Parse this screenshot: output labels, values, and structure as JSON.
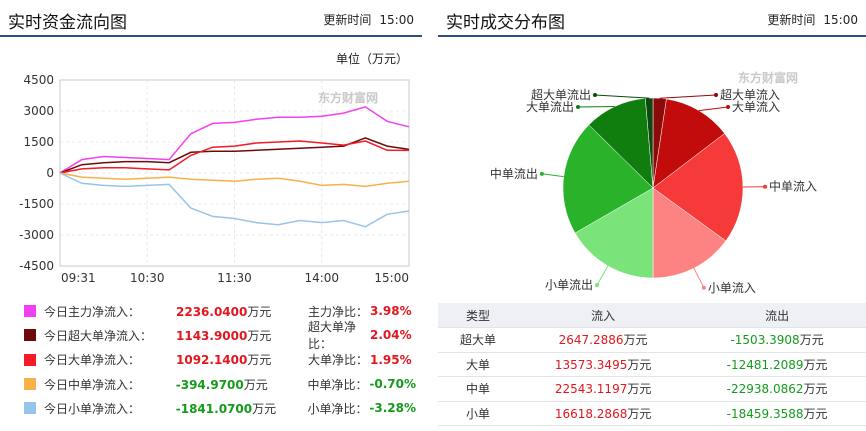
{
  "left": {
    "title": "实时资金流向图",
    "time_label": "更新时间",
    "time_value": "15:00",
    "unit_label": "单位（万元）",
    "legend": [
      {
        "name": "今日主力净流入：",
        "value": "2236.0400",
        "unit": "万元",
        "ratio_name": "主力净比：",
        "ratio": "3.98%",
        "color": "#f23ff2",
        "sign": "pos"
      },
      {
        "name": "今日超大单净流入：",
        "value": "1143.9000",
        "unit": "万元",
        "ratio_name": "超大单净比：",
        "ratio": "2.04%",
        "color": "#6e0a0a",
        "sign": "pos"
      },
      {
        "name": "今日大单净流入：",
        "value": "1092.1400",
        "unit": "万元",
        "ratio_name": "大单净比：",
        "ratio": "1.95%",
        "color": "#f21b26",
        "sign": "pos"
      },
      {
        "name": "今日中单净流入：",
        "value": "-394.9700",
        "unit": "万元",
        "ratio_name": "中单净比：",
        "ratio": "-0.70%",
        "color": "#f6b24a",
        "sign": "neg"
      },
      {
        "name": "今日小单净流入：",
        "value": "-1841.0700",
        "unit": "万元",
        "ratio_name": "小单净比：",
        "ratio": "-3.28%",
        "color": "#97c4ea",
        "sign": "neg"
      }
    ]
  },
  "right": {
    "title": "实时成交分布图",
    "time_label": "更新时间",
    "time_value": "15:00",
    "table": {
      "headers": [
        "类型",
        "流入",
        "流出"
      ],
      "unit": "万元",
      "rows": [
        {
          "type": "超大单",
          "in": "2647.2886",
          "out": "-1503.3908"
        },
        {
          "type": "大单",
          "in": "13573.3495",
          "out": "-12481.2089"
        },
        {
          "type": "中单",
          "in": "22543.1197",
          "out": "-22938.0862"
        },
        {
          "type": "小单",
          "in": "16618.2868",
          "out": "-18459.3588"
        }
      ]
    }
  },
  "chart_data": [
    {
      "type": "line",
      "ylim": [
        -4500,
        4500
      ],
      "yticks": [
        4500,
        3000,
        1500,
        0,
        -1500,
        -3000,
        -4500
      ],
      "xticks": [
        "09:31",
        "10:30",
        "11:30",
        "14:00",
        "15:00"
      ],
      "x": [
        "09:31",
        "09:45",
        "10:00",
        "10:15",
        "10:30",
        "10:45",
        "11:00",
        "11:15",
        "11:30",
        "13:15",
        "13:30",
        "13:45",
        "14:00",
        "14:15",
        "14:30",
        "14:45",
        "15:00"
      ],
      "series": [
        {
          "name": "主力",
          "color": "#f23ff2",
          "values": [
            0,
            650,
            800,
            750,
            700,
            650,
            1900,
            2400,
            2450,
            2600,
            2700,
            2700,
            2750,
            2900,
            3200,
            2500,
            2236
          ]
        },
        {
          "name": "超大单",
          "color": "#6e0a0a",
          "values": [
            0,
            400,
            500,
            550,
            550,
            500,
            1000,
            1050,
            1050,
            1100,
            1150,
            1200,
            1250,
            1300,
            1700,
            1300,
            1144
          ]
        },
        {
          "name": "大单",
          "color": "#f21b26",
          "values": [
            0,
            200,
            250,
            250,
            200,
            150,
            850,
            1250,
            1300,
            1450,
            1500,
            1550,
            1450,
            1350,
            1550,
            1100,
            1092
          ]
        },
        {
          "name": "中单",
          "color": "#f6b24a",
          "values": [
            0,
            -200,
            -250,
            -300,
            -250,
            -200,
            -300,
            -350,
            -400,
            -300,
            -250,
            -400,
            -600,
            -550,
            -650,
            -500,
            -395
          ]
        },
        {
          "name": "小单",
          "color": "#97c4ea",
          "values": [
            0,
            -500,
            -600,
            -650,
            -600,
            -550,
            -1700,
            -2100,
            -2200,
            -2400,
            -2500,
            -2300,
            -2400,
            -2300,
            -2600,
            -2000,
            -1841
          ]
        }
      ]
    },
    {
      "type": "pie",
      "categories": [
        "超大单流入",
        "大单流入",
        "中单流入",
        "小单流入",
        "小单流出",
        "中单流出",
        "大单流出",
        "超大单流出"
      ],
      "values": [
        2647.2886,
        13573.3495,
        22543.1197,
        16618.2868,
        18459.3588,
        22938.0862,
        12481.2089,
        1503.3908
      ],
      "colors": [
        "#8c0a0a",
        "#c20b0b",
        "#f63a3a",
        "#fd8282",
        "#7ae47a",
        "#2bb22b",
        "#0f7e0f",
        "#0d4a0d"
      ]
    }
  ],
  "watermark": "东方财富网"
}
